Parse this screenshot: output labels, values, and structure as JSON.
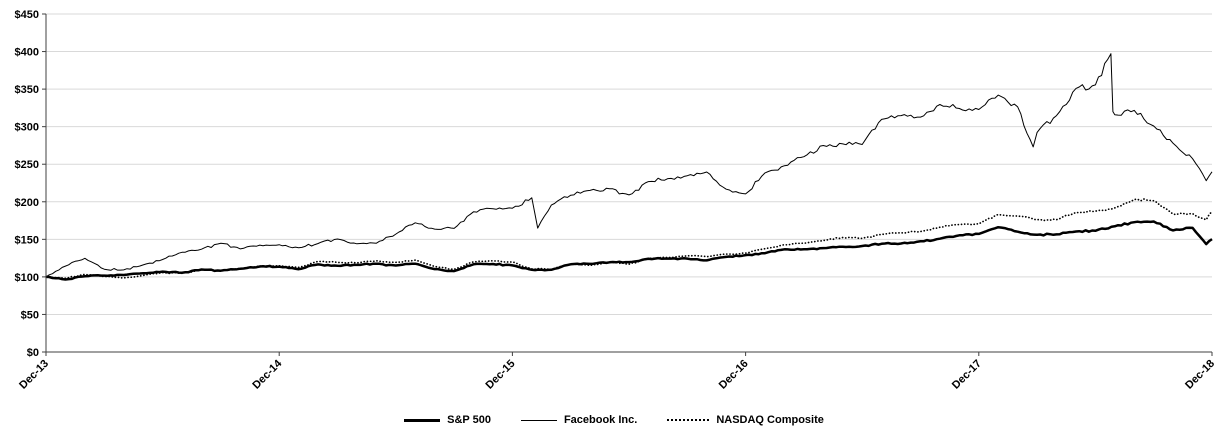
{
  "chart_data": {
    "type": "line",
    "title": "",
    "xlabel": "",
    "ylabel": "",
    "x_unit": "months-since-Dec-13",
    "x_range": [
      0,
      60
    ],
    "ylim": [
      0,
      450
    ],
    "y_tick_values": [
      0,
      50,
      100,
      150,
      200,
      250,
      300,
      350,
      400,
      450
    ],
    "y_tick_labels": [
      "$0",
      "$50",
      "$100",
      "$150",
      "$200",
      "$250",
      "$300",
      "$350",
      "$400",
      "$450"
    ],
    "x_tick_positions": [
      0,
      12,
      24,
      36,
      48,
      60
    ],
    "x_tick_labels": [
      "Dec-13",
      "Dec-14",
      "Dec-15",
      "Dec-16",
      "Dec-17",
      "Dec-18"
    ],
    "grid": "horizontal",
    "gridline_color": "#d9d9d9",
    "axis_color": "#404040",
    "background_color": "#ffffff",
    "legend_position": "bottom",
    "series": [
      {
        "name": "S&P 500",
        "color": "#000000",
        "line_style": "thick-solid",
        "points": [
          [
            0,
            100
          ],
          [
            1,
            96.5
          ],
          [
            2,
            100.9
          ],
          [
            3,
            101.7
          ],
          [
            4,
            102.5
          ],
          [
            5,
            104.9
          ],
          [
            6,
            107.0
          ],
          [
            7,
            105.6
          ],
          [
            8,
            109.8
          ],
          [
            9,
            108.2
          ],
          [
            10,
            110.9
          ],
          [
            11,
            113.8
          ],
          [
            12,
            113.7
          ],
          [
            13,
            110.3
          ],
          [
            14,
            116.6
          ],
          [
            15,
            114.8
          ],
          [
            16,
            115.9
          ],
          [
            17,
            117.4
          ],
          [
            18,
            115.1
          ],
          [
            19,
            117.5
          ],
          [
            20,
            110.4
          ],
          [
            21,
            107.7
          ],
          [
            22,
            116.8
          ],
          [
            23,
            117.1
          ],
          [
            24,
            115.3
          ],
          [
            25,
            109.5
          ],
          [
            26,
            109.4
          ],
          [
            27,
            116.8
          ],
          [
            28,
            117.3
          ],
          [
            29,
            119.4
          ],
          [
            30,
            119.7
          ],
          [
            31,
            124.1
          ],
          [
            32,
            124.3
          ],
          [
            33,
            124.3
          ],
          [
            34,
            122.0
          ],
          [
            35,
            126.6
          ],
          [
            36,
            129.0
          ],
          [
            37,
            131.5
          ],
          [
            38,
            136.7
          ],
          [
            39,
            136.9
          ],
          [
            40,
            138.3
          ],
          [
            41,
            140.2
          ],
          [
            42,
            141.1
          ],
          [
            43,
            144.0
          ],
          [
            44,
            144.4
          ],
          [
            45,
            147.4
          ],
          [
            46,
            150.8
          ],
          [
            47,
            155.4
          ],
          [
            48,
            157.2
          ],
          [
            49,
            166.2
          ],
          [
            50,
            160.1
          ],
          [
            51,
            156.0
          ],
          [
            52,
            156.6
          ],
          [
            53,
            160.4
          ],
          [
            54,
            161.4
          ],
          [
            55,
            167.4
          ],
          [
            56,
            172.8
          ],
          [
            57,
            173.8
          ],
          [
            58,
            161.9
          ],
          [
            59,
            165.2
          ],
          [
            59.7,
            143.6
          ],
          [
            60,
            150.3
          ]
        ]
      },
      {
        "name": "Facebook Inc.",
        "color": "#000000",
        "line_style": "thin-solid",
        "points": [
          [
            0,
            100
          ],
          [
            1,
            114.4
          ],
          [
            2,
            124.8
          ],
          [
            3,
            110.2
          ],
          [
            4,
            109.3
          ],
          [
            5,
            115.9
          ],
          [
            6,
            123.1
          ],
          [
            7,
            132.8
          ],
          [
            8,
            136.9
          ],
          [
            9,
            144.7
          ],
          [
            10,
            137.3
          ],
          [
            11,
            142.3
          ],
          [
            12,
            142.8
          ],
          [
            13,
            138.9
          ],
          [
            14,
            144.5
          ],
          [
            15,
            150.4
          ],
          [
            16,
            144.1
          ],
          [
            17,
            144.9
          ],
          [
            18,
            157.0
          ],
          [
            19,
            172.0
          ],
          [
            20,
            163.6
          ],
          [
            21,
            164.5
          ],
          [
            22,
            186.6
          ],
          [
            23,
            190.7
          ],
          [
            24,
            191.5
          ],
          [
            25,
            205.3
          ],
          [
            25.3,
            165.0
          ],
          [
            26,
            195.6
          ],
          [
            27,
            208.8
          ],
          [
            28,
            215.1
          ],
          [
            29,
            217.4
          ],
          [
            30,
            209.1
          ],
          [
            31,
            226.8
          ],
          [
            32,
            230.8
          ],
          [
            33,
            234.7
          ],
          [
            34,
            239.7
          ],
          [
            35,
            216.7
          ],
          [
            36,
            210.5
          ],
          [
            37,
            238.5
          ],
          [
            38,
            248.0
          ],
          [
            39,
            260.0
          ],
          [
            40,
            274.9
          ],
          [
            41,
            277.1
          ],
          [
            42,
            276.3
          ],
          [
            43,
            309.7
          ],
          [
            44,
            314.7
          ],
          [
            45,
            312.7
          ],
          [
            46,
            329.5
          ],
          [
            47,
            324.2
          ],
          [
            48,
            322.9
          ],
          [
            49,
            342.0
          ],
          [
            50,
            326.3
          ],
          [
            50.8,
            273.0
          ],
          [
            51,
            292.4
          ],
          [
            52,
            314.8
          ],
          [
            53,
            351.0
          ],
          [
            54,
            355.6
          ],
          [
            54.8,
            397.2
          ],
          [
            54.9,
            320.0
          ],
          [
            55,
            315.9
          ],
          [
            56,
            321.6
          ],
          [
            57,
            300.9
          ],
          [
            58,
            277.9
          ],
          [
            59,
            257.3
          ],
          [
            59.7,
            228.0
          ],
          [
            60,
            239.9
          ]
        ]
      },
      {
        "name": "NASDAQ Composite",
        "color": "#000000",
        "line_style": "dotted",
        "points": [
          [
            0,
            100
          ],
          [
            1,
            98.3
          ],
          [
            2,
            103.3
          ],
          [
            3,
            100.7
          ],
          [
            4,
            98.7
          ],
          [
            5,
            101.8
          ],
          [
            6,
            105.7
          ],
          [
            7,
            104.8
          ],
          [
            8,
            109.9
          ],
          [
            9,
            107.9
          ],
          [
            10,
            111.0
          ],
          [
            11,
            114.3
          ],
          [
            12,
            114.7
          ],
          [
            13,
            112.6
          ],
          [
            14,
            120.6
          ],
          [
            15,
            119.2
          ],
          [
            16,
            118.7
          ],
          [
            17,
            121.4
          ],
          [
            18,
            119.4
          ],
          [
            19,
            122.3
          ],
          [
            20,
            113.8
          ],
          [
            21,
            110.1
          ],
          [
            22,
            120.0
          ],
          [
            23,
            121.4
          ],
          [
            24,
            119.9
          ],
          [
            25,
            110.6
          ],
          [
            26,
            109.8
          ],
          [
            27,
            117.4
          ],
          [
            28,
            115.2
          ],
          [
            29,
            119.5
          ],
          [
            30,
            116.9
          ],
          [
            31,
            124.5
          ],
          [
            32,
            125.8
          ],
          [
            33,
            128.2
          ],
          [
            34,
            127.0
          ],
          [
            35,
            130.4
          ],
          [
            36,
            131.7
          ],
          [
            37,
            137.5
          ],
          [
            38,
            142.7
          ],
          [
            39,
            144.8
          ],
          [
            40,
            148.6
          ],
          [
            41,
            152.5
          ],
          [
            42,
            151.2
          ],
          [
            43,
            156.5
          ],
          [
            44,
            158.7
          ],
          [
            45,
            160.4
          ],
          [
            46,
            166.1
          ],
          [
            47,
            169.7
          ],
          [
            48,
            170.6
          ],
          [
            49,
            183.0
          ],
          [
            50,
            181.2
          ],
          [
            51,
            176.1
          ],
          [
            52,
            176.2
          ],
          [
            53,
            185.8
          ],
          [
            54,
            187.5
          ],
          [
            55,
            191.8
          ],
          [
            56,
            203.0
          ],
          [
            57,
            201.5
          ],
          [
            58,
            183.6
          ],
          [
            59,
            184.2
          ],
          [
            59.7,
            176.0
          ],
          [
            60,
            187.0
          ]
        ]
      }
    ]
  }
}
